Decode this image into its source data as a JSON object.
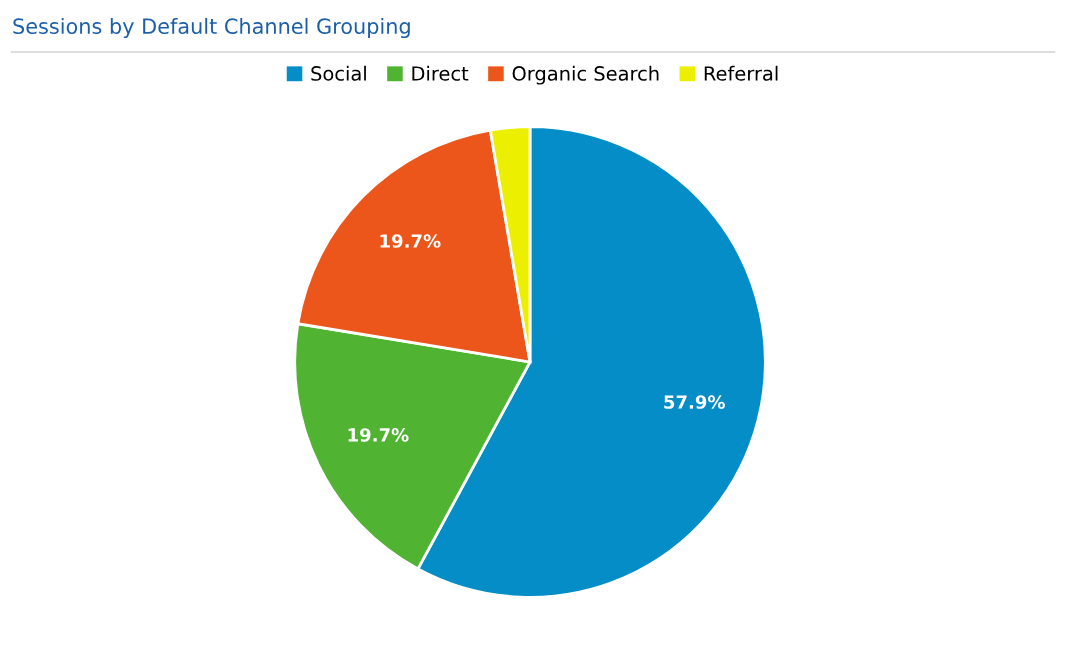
{
  "chart_data": {
    "type": "pie",
    "title": "Sessions by Default Channel Grouping",
    "categories": [
      "Social",
      "Direct",
      "Organic Search",
      "Referral"
    ],
    "values": [
      57.9,
      19.7,
      19.7,
      2.7
    ],
    "colors": [
      "#058dc7",
      "#50b432",
      "#ed561b",
      "#edef00"
    ],
    "value_labels": [
      "57.9%",
      "19.7%",
      "19.7%",
      null
    ],
    "legend": "top"
  }
}
